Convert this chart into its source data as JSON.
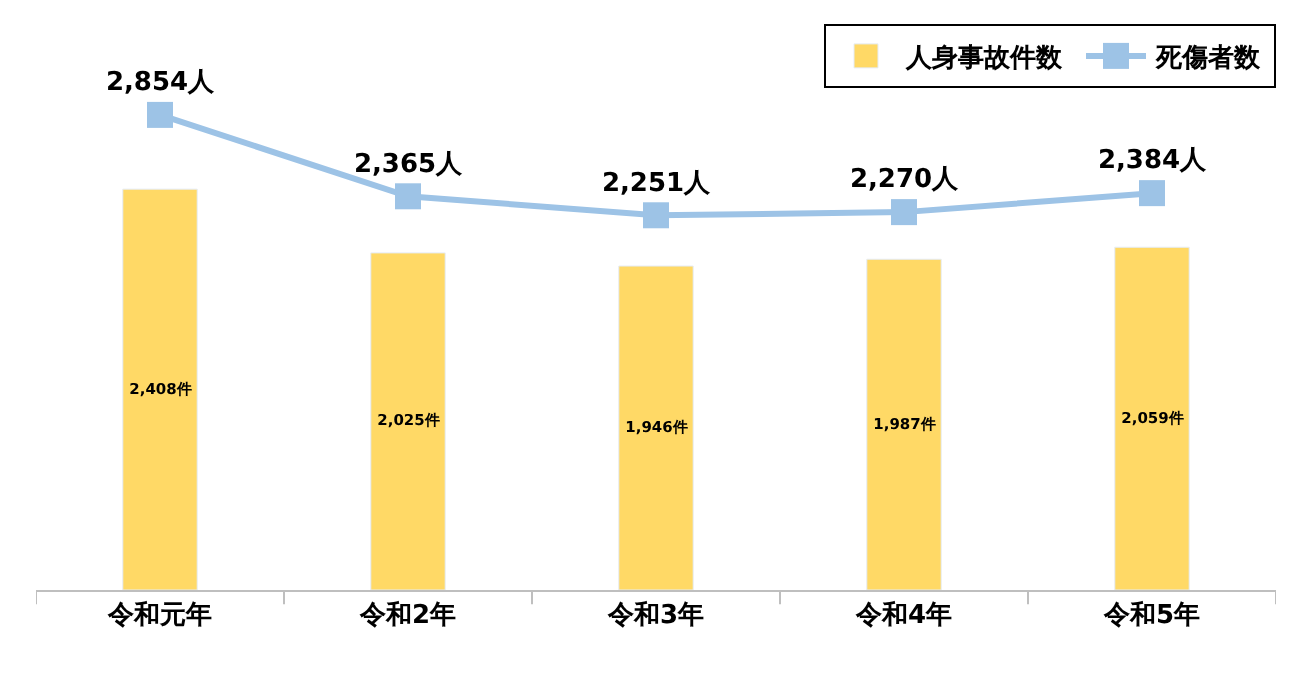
{
  "chart_data": {
    "type": "bar",
    "categories": [
      "令和元年",
      "令和2年",
      "令和3年",
      "令和4年",
      "令和5年"
    ],
    "series": [
      {
        "name": "人身事故件数",
        "color": "#ffd966",
        "values": [
          2408,
          2025,
          1946,
          1987,
          2059
        ],
        "value_labels": [
          "2,408件",
          "2,025件",
          "1,946件",
          "1,987件",
          "2,059件"
        ]
      },
      {
        "name": "死傷者数",
        "type": "line",
        "color": "#9dc3e6",
        "marker": "square",
        "values": [
          2854,
          2365,
          2251,
          2270,
          2384
        ],
        "value_labels": [
          "2,854人",
          "2,365人",
          "2,251人",
          "2,270人",
          "2,384人"
        ]
      }
    ],
    "ylim": [
      0,
      3400
    ],
    "tick_labels": "x",
    "legend": "top right"
  }
}
